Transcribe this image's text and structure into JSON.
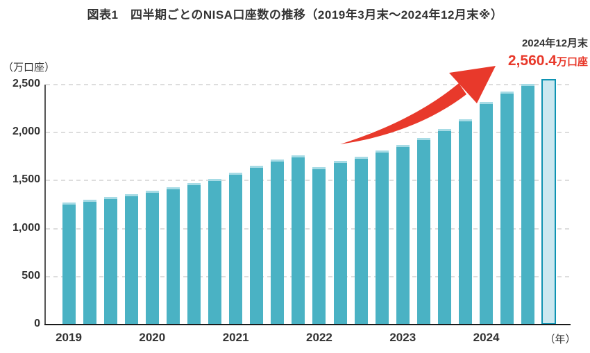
{
  "title": "図表1　四半期ごとのNISA口座数の推移（2019年3月末～2024年12月末※）",
  "y_axis_unit": "（万口座）",
  "x_axis_unit": "（年）",
  "annotation": {
    "date_label": "2024年12月末",
    "value_number": "2,560.4",
    "value_unit": "万口座"
  },
  "colors": {
    "bar": "#4ab2c4",
    "bar_top_highlight": "#a6dbe5",
    "highlight_bar_fill": "#cbe8f0",
    "highlight_bar_border": "#0e93b2",
    "arrow_red": "#e8392b",
    "text": "#333333",
    "gridline": "#dddddd"
  },
  "chart_data": {
    "type": "bar",
    "title": "四半期ごとのNISA口座数の推移",
    "x": [
      "2019/3",
      "2019/6",
      "2019/9",
      "2019/12",
      "2020/3",
      "2020/6",
      "2020/9",
      "2020/12",
      "2021/3",
      "2021/6",
      "2021/9",
      "2021/12",
      "2022/3",
      "2022/6",
      "2022/9",
      "2022/12",
      "2023/3",
      "2023/6",
      "2023/9",
      "2023/12",
      "2024/3",
      "2024/6",
      "2024/9",
      "2024/12"
    ],
    "values": [
      1275,
      1300,
      1330,
      1356,
      1398,
      1434,
      1474,
      1519,
      1586,
      1655,
      1717,
      1765,
      1642,
      1703,
      1752,
      1812,
      1873,
      1941,
      2035,
      2136,
      2323,
      2428,
      2509,
      2560.4
    ],
    "year_labels": [
      "2019",
      "2020",
      "2021",
      "2022",
      "2023",
      "2024"
    ],
    "y_ticks": [
      {
        "value": 0,
        "label": "0"
      },
      {
        "value": 500,
        "label": "500"
      },
      {
        "value": 1000,
        "label": "1,000"
      },
      {
        "value": 1500,
        "label": "1,500"
      },
      {
        "value": 2000,
        "label": "2,000"
      },
      {
        "value": 2500,
        "label": "2,500"
      }
    ],
    "ylabel": "万口座",
    "xlabel": "年",
    "ylim": [
      0,
      2500
    ],
    "grid": "horizontal-dashed",
    "legend": "none",
    "highlight_last_bar": true,
    "highlighted_point": {
      "x": "2024/12",
      "value": 2560.4
    }
  }
}
